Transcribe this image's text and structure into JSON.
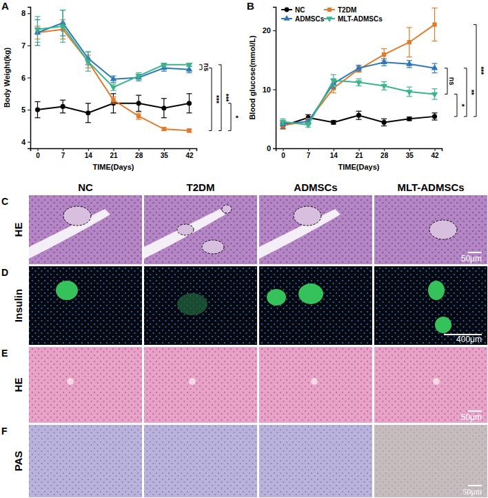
{
  "chart_data": [
    {
      "type": "line",
      "title": "A",
      "x_label": "TIME(Days)",
      "y_label": "Body Weight(kg)",
      "x": [
        0,
        7,
        14,
        21,
        28,
        35,
        42
      ],
      "xlim": [
        -2,
        44
      ],
      "xticks": [
        0,
        7,
        14,
        21,
        28,
        35,
        42
      ],
      "ylim": [
        3.8,
        8.2
      ],
      "yticks": [
        4,
        5,
        6,
        7,
        8
      ],
      "series": [
        {
          "name": "NC",
          "color": "#000000",
          "marker": "circle",
          "values": [
            5.0,
            5.1,
            4.9,
            5.2,
            5.2,
            5.05,
            5.2
          ],
          "errors": [
            0.25,
            0.2,
            0.3,
            0.3,
            0.25,
            0.3,
            0.3
          ]
        },
        {
          "name": "T2DM",
          "color": "#e07b2a",
          "marker": "square",
          "values": [
            7.4,
            7.5,
            6.5,
            5.3,
            4.8,
            4.4,
            4.35
          ],
          "errors": [
            0.2,
            0.3,
            0.2,
            0.1,
            0.1,
            0.05,
            0.05
          ]
        },
        {
          "name": "ADMSCs",
          "color": "#2e78b7",
          "marker": "triangle",
          "values": [
            7.4,
            7.7,
            6.6,
            5.95,
            6.0,
            6.3,
            6.25
          ],
          "errors": [
            0.4,
            0.4,
            0.2,
            0.1,
            0.1,
            0.1,
            0.1
          ]
        },
        {
          "name": "MLT-ADMSCs",
          "color": "#3bb38f",
          "marker": "triangle-down",
          "values": [
            7.5,
            7.6,
            6.5,
            5.7,
            6.05,
            6.4,
            6.4
          ],
          "errors": [
            0.4,
            0.5,
            0.3,
            0.1,
            0.1,
            0.05,
            0.05
          ]
        }
      ],
      "brackets": [
        {
          "label": "ns",
          "y1": 6.25,
          "y2": 6.4
        },
        {
          "label": "***",
          "y1": 6.3,
          "y2": 4.35
        },
        {
          "label": "***",
          "y1": 6.4,
          "y2": 4.35
        },
        {
          "label": "*",
          "y1": 5.2,
          "y2": 4.35
        }
      ]
    },
    {
      "type": "line",
      "title": "B",
      "x_label": "TIME(Days)",
      "y_label": "Blood glucose(mmol/L)",
      "x": [
        0,
        7,
        14,
        21,
        28,
        35,
        42
      ],
      "xlim": [
        -2,
        44
      ],
      "xticks": [
        0,
        7,
        14,
        21,
        28,
        35,
        42
      ],
      "ylim": [
        0,
        24
      ],
      "yticks": [
        0,
        10,
        20
      ],
      "legend": "top-left",
      "series": [
        {
          "name": "NC",
          "color": "#000000",
          "marker": "circle",
          "values": [
            3.8,
            5.2,
            4.4,
            5.6,
            4.4,
            5.0,
            5.4
          ],
          "errors": [
            0.5,
            0.5,
            0.3,
            0.7,
            0.6,
            0.3,
            0.6
          ]
        },
        {
          "name": "T2DM",
          "color": "#e07b2a",
          "marker": "square",
          "values": [
            3.9,
            4.6,
            10.2,
            13.4,
            15.9,
            18.0,
            21.0
          ],
          "errors": [
            0.5,
            0.5,
            0.8,
            0.5,
            1.0,
            2.5,
            2.8
          ]
        },
        {
          "name": "ADMSCs",
          "color": "#2e78b7",
          "marker": "triangle",
          "values": [
            4.2,
            4.5,
            11.0,
            13.6,
            14.6,
            14.3,
            13.6
          ],
          "errors": [
            0.4,
            0.4,
            0.8,
            0.5,
            0.6,
            0.6,
            0.8
          ]
        },
        {
          "name": "MLT-ADMSCs",
          "color": "#3bb38f",
          "marker": "triangle-down",
          "values": [
            4.5,
            4.0,
            11.5,
            11.2,
            10.6,
            9.6,
            9.2
          ],
          "errors": [
            0.5,
            0.4,
            1.0,
            0.6,
            0.7,
            0.8,
            0.9
          ]
        }
      ],
      "brackets": [
        {
          "label": "ns",
          "y1": 13.6,
          "y2": 9.2
        },
        {
          "label": "*",
          "y1": 9.2,
          "y2": 5.4
        },
        {
          "label": "**",
          "y1": 13.6,
          "y2": 5.4
        },
        {
          "label": "***",
          "y1": 21.0,
          "y2": 5.4
        }
      ]
    }
  ],
  "figure": {
    "column_headers": [
      "NC",
      "T2DM",
      "ADMSCs",
      "MLT-ADMSCs"
    ],
    "panels": [
      {
        "letter": "C",
        "stain": "HE",
        "scale_bar": "50μm"
      },
      {
        "letter": "D",
        "stain": "Insulin",
        "scale_bar": "400μm"
      },
      {
        "letter": "E",
        "stain": "HE",
        "scale_bar": "50μm"
      },
      {
        "letter": "F",
        "stain": "PAS",
        "scale_bar": "50μm"
      }
    ]
  }
}
